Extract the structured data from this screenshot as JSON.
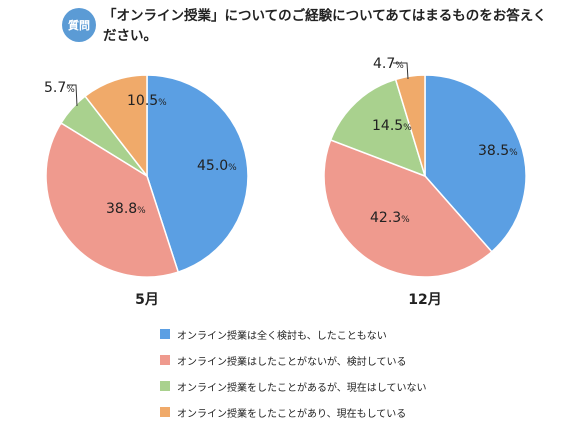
{
  "header": {
    "badge": "質問",
    "question": "「オンライン授業」についてのご経験についてあてはまるものをお答えください。"
  },
  "chart_data": [
    {
      "type": "pie",
      "title": "5月",
      "slices": [
        {
          "label": "オンライン授業は全く検討も、したこともない",
          "value": 45.0,
          "text": "45.0",
          "color": "#5b9fe3"
        },
        {
          "label": "オンライン授業はしたことがないが、検討している",
          "value": 38.8,
          "text": "38.8",
          "color": "#ef9a8e"
        },
        {
          "label": "オンライン授業をしたことがあるが、現在はしていない",
          "value": 5.7,
          "text": "5.7",
          "color": "#a9d18e"
        },
        {
          "label": "オンライン授業をしたことがあり、現在もしている",
          "value": 10.5,
          "text": "10.5",
          "color": "#f0aa6a"
        }
      ],
      "unit": "%"
    },
    {
      "type": "pie",
      "title": "12月",
      "slices": [
        {
          "label": "オンライン授業は全く検討も、したこともない",
          "value": 38.5,
          "text": "38.5",
          "color": "#5b9fe3"
        },
        {
          "label": "オンライン授業はしたことがないが、検討している",
          "value": 42.3,
          "text": "42.3",
          "color": "#ef9a8e"
        },
        {
          "label": "オンライン授業をしたことがあるが、現在はしていない",
          "value": 14.5,
          "text": "14.5",
          "color": "#a9d18e"
        },
        {
          "label": "オンライン授業をしたことがあり、現在もしている",
          "value": 4.7,
          "text": "4.7",
          "color": "#f0aa6a"
        }
      ],
      "unit": "%"
    }
  ],
  "legend": [
    {
      "label": "オンライン授業は全く検討も、したこともない",
      "color": "#5b9fe3"
    },
    {
      "label": "オンライン授業はしたことがないが、検討している",
      "color": "#ef9a8e"
    },
    {
      "label": "オンライン授業をしたことがあるが、現在はしていない",
      "color": "#a9d18e"
    },
    {
      "label": "オンライン授業をしたことがあり、現在もしている",
      "color": "#f0aa6a"
    }
  ]
}
